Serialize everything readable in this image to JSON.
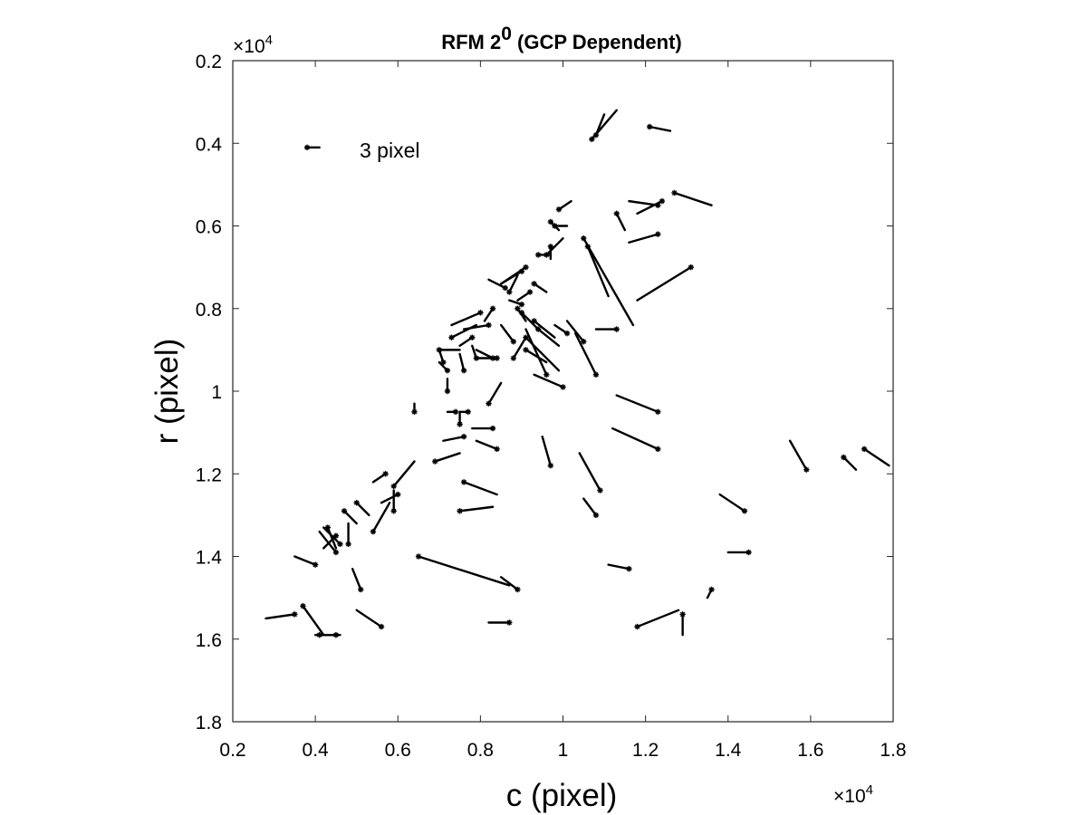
{
  "chart_data": {
    "type": "quiver",
    "title": "RFM 2",
    "title_superscript": "0",
    "title_suffix": " (GCP Dependent)",
    "xlabel": "c (pixel)",
    "ylabel": "r (pixel)",
    "x_multiplier": "×10",
    "x_multiplier_exp": "4",
    "y_multiplier": "×10",
    "y_multiplier_exp": "4",
    "xlim": [
      2000,
      18000
    ],
    "ylim": [
      2000,
      18000
    ],
    "y_reversed": true,
    "xticks": [
      2000,
      4000,
      6000,
      8000,
      10000,
      12000,
      14000,
      16000,
      18000
    ],
    "xtick_labels": [
      "0.2",
      "0.4",
      "0.6",
      "0.8",
      "1",
      "1.2",
      "1.4",
      "1.6",
      "1.8"
    ],
    "yticks": [
      2000,
      4000,
      6000,
      8000,
      10000,
      12000,
      14000,
      16000,
      18000
    ],
    "ytick_labels": [
      "0.2",
      "0.4",
      "0.6",
      "0.8",
      "1",
      "1.2",
      "1.4",
      "1.6",
      "1.8"
    ],
    "legend": {
      "label": "3 pixel",
      "position": "top-left",
      "c": 3800,
      "r": 4100,
      "dc": 300,
      "dr": 0
    },
    "vectors": [
      {
        "c": 10700,
        "r": 3900,
        "dc": 600,
        "dr": -700
      },
      {
        "c": 10800,
        "r": 3800,
        "dc": 200,
        "dr": -500
      },
      {
        "c": 12100,
        "r": 3600,
        "dc": 500,
        "dr": 100
      },
      {
        "c": 12700,
        "r": 5200,
        "dc": 900,
        "dr": 300
      },
      {
        "c": 12400,
        "r": 5400,
        "dc": -600,
        "dr": 300
      },
      {
        "c": 12300,
        "r": 5500,
        "dc": -700,
        "dr": -100
      },
      {
        "c": 11300,
        "r": 5700,
        "dc": 200,
        "dr": 400
      },
      {
        "c": 9900,
        "r": 5600,
        "dc": 300,
        "dr": -200
      },
      {
        "c": 9700,
        "r": 5900,
        "dc": 200,
        "dr": 200
      },
      {
        "c": 9800,
        "r": 6000,
        "dc": 300,
        "dr": 0
      },
      {
        "c": 12300,
        "r": 6200,
        "dc": -700,
        "dr": 200
      },
      {
        "c": 10500,
        "r": 6300,
        "dc": 1200,
        "dr": 2100
      },
      {
        "c": 10600,
        "r": 6500,
        "dc": 500,
        "dr": 1200
      },
      {
        "c": 13100,
        "r": 7000,
        "dc": -1300,
        "dr": 800
      },
      {
        "c": 9600,
        "r": 6700,
        "dc": 400,
        "dr": -400
      },
      {
        "c": 9400,
        "r": 6700,
        "dc": 300,
        "dr": 0
      },
      {
        "c": 9700,
        "r": 6500,
        "dc": 0,
        "dr": 300
      },
      {
        "c": 9100,
        "r": 7000,
        "dc": -600,
        "dr": 400
      },
      {
        "c": 9000,
        "r": 7100,
        "dc": -500,
        "dr": 300
      },
      {
        "c": 8600,
        "r": 7500,
        "dc": -400,
        "dr": -200
      },
      {
        "c": 8700,
        "r": 7600,
        "dc": 200,
        "dr": -400
      },
      {
        "c": 9300,
        "r": 7400,
        "dc": 300,
        "dr": 200
      },
      {
        "c": 9200,
        "r": 7600,
        "dc": -300,
        "dr": 200
      },
      {
        "c": 9000,
        "r": 7900,
        "dc": -300,
        "dr": -100
      },
      {
        "c": 8300,
        "r": 8000,
        "dc": -200,
        "dr": 300
      },
      {
        "c": 8000,
        "r": 8100,
        "dc": -700,
        "dr": 300
      },
      {
        "c": 7300,
        "r": 8700,
        "dc": 600,
        "dr": -300
      },
      {
        "c": 8200,
        "r": 8400,
        "dc": -600,
        "dr": 100
      },
      {
        "c": 8900,
        "r": 8000,
        "dc": 200,
        "dr": 300
      },
      {
        "c": 9000,
        "r": 8100,
        "dc": 400,
        "dr": 400
      },
      {
        "c": 9300,
        "r": 8300,
        "dc": 500,
        "dr": 400
      },
      {
        "c": 9400,
        "r": 8500,
        "dc": 500,
        "dr": 400
      },
      {
        "c": 9100,
        "r": 8700,
        "dc": 800,
        "dr": 800
      },
      {
        "c": 9600,
        "r": 9600,
        "dc": -500,
        "dr": -1100
      },
      {
        "c": 9100,
        "r": 9000,
        "dc": 500,
        "dr": 300
      },
      {
        "c": 10500,
        "r": 8800,
        "dc": -400,
        "dr": -500
      },
      {
        "c": 10100,
        "r": 8600,
        "dc": -300,
        "dr": -200
      },
      {
        "c": 11300,
        "r": 8500,
        "dc": -500,
        "dr": 0
      },
      {
        "c": 10800,
        "r": 9600,
        "dc": -500,
        "dr": -1000
      },
      {
        "c": 10000,
        "r": 9900,
        "dc": -700,
        "dr": -300
      },
      {
        "c": 8800,
        "r": 9200,
        "dc": 300,
        "dr": -500
      },
      {
        "c": 8800,
        "r": 8800,
        "dc": -300,
        "dr": -400
      },
      {
        "c": 7800,
        "r": 8700,
        "dc": -300,
        "dr": 200
      },
      {
        "c": 7900,
        "r": 9200,
        "dc": -100,
        "dr": -300
      },
      {
        "c": 8300,
        "r": 9200,
        "dc": -400,
        "dr": -200
      },
      {
        "c": 8200,
        "r": 10300,
        "dc": 300,
        "dr": -500
      },
      {
        "c": 7000,
        "r": 9000,
        "dc": 500,
        "dr": 0
      },
      {
        "c": 7100,
        "r": 9300,
        "dc": -100,
        "dr": -300
      },
      {
        "c": 7200,
        "r": 9500,
        "dc": -200,
        "dr": -200
      },
      {
        "c": 7600,
        "r": 9500,
        "dc": -100,
        "dr": -400
      },
      {
        "c": 8400,
        "r": 9200,
        "dc": -500,
        "dr": 0
      },
      {
        "c": 7200,
        "r": 10000,
        "dc": 0,
        "dr": -300
      },
      {
        "c": 7400,
        "r": 10500,
        "dc": -200,
        "dr": 0
      },
      {
        "c": 7500,
        "r": 10800,
        "dc": 0,
        "dr": -300
      },
      {
        "c": 7700,
        "r": 10500,
        "dc": -200,
        "dr": 0
      },
      {
        "c": 7600,
        "r": 11100,
        "dc": -500,
        "dr": 100
      },
      {
        "c": 8300,
        "r": 10900,
        "dc": -500,
        "dr": 0
      },
      {
        "c": 8400,
        "r": 11400,
        "dc": -500,
        "dr": -200
      },
      {
        "c": 6900,
        "r": 11700,
        "dc": 600,
        "dr": -200
      },
      {
        "c": 6400,
        "r": 10500,
        "dc": 0,
        "dr": -200
      },
      {
        "c": 12300,
        "r": 10500,
        "dc": -1000,
        "dr": -400
      },
      {
        "c": 12300,
        "r": 11400,
        "dc": -1100,
        "dr": -500
      },
      {
        "c": 9700,
        "r": 11800,
        "dc": -200,
        "dr": -700
      },
      {
        "c": 10900,
        "r": 12400,
        "dc": -500,
        "dr": -900
      },
      {
        "c": 10800,
        "r": 13000,
        "dc": -300,
        "dr": -400
      },
      {
        "c": 7600,
        "r": 12200,
        "dc": 800,
        "dr": 300
      },
      {
        "c": 7500,
        "r": 12900,
        "dc": 800,
        "dr": -100
      },
      {
        "c": 6000,
        "r": 12500,
        "dc": -400,
        "dr": 200
      },
      {
        "c": 5900,
        "r": 12300,
        "dc": 500,
        "dr": -600
      },
      {
        "c": 5900,
        "r": 12900,
        "dc": 0,
        "dr": -500
      },
      {
        "c": 5700,
        "r": 12000,
        "dc": -300,
        "dr": 200
      },
      {
        "c": 5400,
        "r": 13400,
        "dc": 400,
        "dr": -700
      },
      {
        "c": 5000,
        "r": 12700,
        "dc": 300,
        "dr": 300
      },
      {
        "c": 4700,
        "r": 12900,
        "dc": 300,
        "dr": 300
      },
      {
        "c": 4800,
        "r": 13700,
        "dc": 0,
        "dr": -500
      },
      {
        "c": 4600,
        "r": 13700,
        "dc": -400,
        "dr": -400
      },
      {
        "c": 4500,
        "r": 13500,
        "dc": -300,
        "dr": 300
      },
      {
        "c": 4300,
        "r": 13300,
        "dc": 200,
        "dr": 500
      },
      {
        "c": 4000,
        "r": 14200,
        "dc": -500,
        "dr": -200
      },
      {
        "c": 4500,
        "r": 13900,
        "dc": -400,
        "dr": -500
      },
      {
        "c": 5100,
        "r": 14800,
        "dc": -200,
        "dr": -500
      },
      {
        "c": 6500,
        "r": 14000,
        "dc": 2200,
        "dr": 700
      },
      {
        "c": 8900,
        "r": 14800,
        "dc": -400,
        "dr": -300
      },
      {
        "c": 8700,
        "r": 15600,
        "dc": -500,
        "dr": 0
      },
      {
        "c": 5600,
        "r": 15700,
        "dc": -600,
        "dr": -400
      },
      {
        "c": 3500,
        "r": 15400,
        "dc": -700,
        "dr": 100
      },
      {
        "c": 3700,
        "r": 15200,
        "dc": 500,
        "dr": 700
      },
      {
        "c": 4500,
        "r": 15900,
        "dc": -500,
        "dr": 0
      },
      {
        "c": 4100,
        "r": 15900,
        "dc": 500,
        "dr": 0
      },
      {
        "c": 11600,
        "r": 14300,
        "dc": -500,
        "dr": -100
      },
      {
        "c": 11800,
        "r": 15700,
        "dc": 1000,
        "dr": -400
      },
      {
        "c": 12900,
        "r": 15400,
        "dc": 0,
        "dr": 500
      },
      {
        "c": 13600,
        "r": 14800,
        "dc": -100,
        "dr": 200
      },
      {
        "c": 14400,
        "r": 12900,
        "dc": -600,
        "dr": -400
      },
      {
        "c": 14500,
        "r": 13900,
        "dc": -500,
        "dr": 0
      },
      {
        "c": 15900,
        "r": 11900,
        "dc": -400,
        "dr": -700
      },
      {
        "c": 16800,
        "r": 11600,
        "dc": 300,
        "dr": 300
      },
      {
        "c": 17300,
        "r": 11400,
        "dc": 600,
        "dr": 400
      }
    ]
  }
}
